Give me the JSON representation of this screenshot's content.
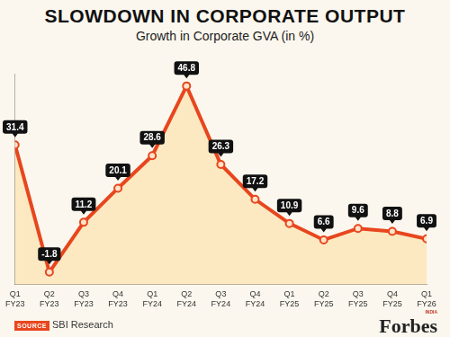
{
  "chart_data": {
    "type": "line",
    "title": "SLOWDOWN IN CORPORATE OUTPUT",
    "subtitle": "Growth in Corporate GVA (in %)",
    "categories": [
      "Q1 FY23",
      "Q2 FY23",
      "Q3 FY23",
      "Q4 FY23",
      "Q1 FY24",
      "Q2 FY24",
      "Q3 FY24",
      "Q4 FY24",
      "Q1 FY25",
      "Q2 FY25",
      "Q3 FY25",
      "Q4 FY25",
      "Q1 FY26"
    ],
    "values": [
      31.4,
      -1.8,
      11.2,
      20.1,
      28.6,
      46.8,
      26.3,
      17.2,
      10.9,
      6.6,
      9.6,
      8.8,
      6.9
    ],
    "color": "#e8461e",
    "ylim": [
      -5,
      50
    ],
    "yticks": [],
    "grid": false,
    "tick_labels": "x",
    "data_labels": true,
    "marker": "circle",
    "line_style": "solid",
    "source": {
      "label": "SOURCE",
      "text": "SBI Research"
    },
    "brand": {
      "name": "Forbes",
      "edition": "INDIA"
    }
  }
}
